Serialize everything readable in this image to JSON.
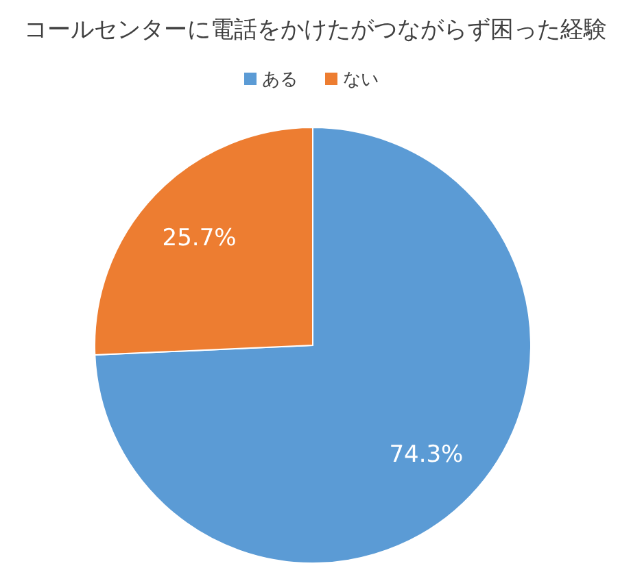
{
  "chart_data": {
    "type": "pie",
    "title": "コールセンターに電話をかけたがつながらず困った経験",
    "categories": [
      "ある",
      "ない"
    ],
    "values": [
      74.3,
      25.7
    ],
    "colors": [
      "#5b9bd5",
      "#ed7d31"
    ],
    "value_labels": [
      "74.3%",
      "25.7%"
    ],
    "legend": "top"
  }
}
